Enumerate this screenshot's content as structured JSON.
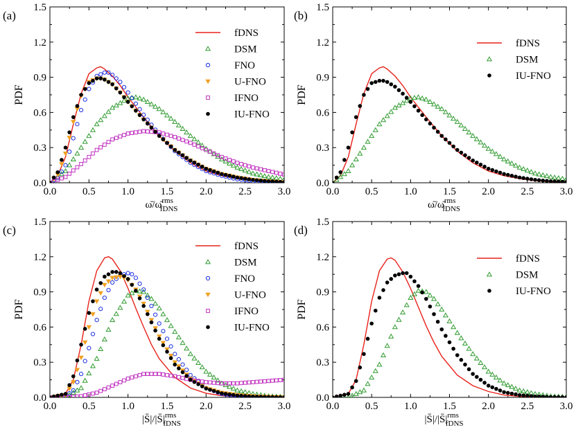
{
  "chart_data": [
    {
      "type": "line",
      "panel_label": "(a)",
      "xlabel_main": "ω̄/ω̄",
      "xlabel_sup": "rms",
      "xlabel_sub": "fDNS",
      "ylabel": "PDF",
      "xlim": [
        0.0,
        3.0
      ],
      "ylim": [
        0.0,
        1.5
      ],
      "xticks": [
        "0.0",
        "0.5",
        "1.0",
        "1.5",
        "2.0",
        "2.5",
        "3.0"
      ],
      "yticks": [
        "0.0",
        "0.3",
        "0.6",
        "0.9",
        "1.2",
        "1.5"
      ],
      "legend_position": "top-right",
      "series": [
        {
          "name": "fDNS",
          "style": "line",
          "color": "#e8211a",
          "x": [
            0.0,
            0.1,
            0.2,
            0.3,
            0.4,
            0.5,
            0.6,
            0.65,
            0.7,
            0.8,
            0.9,
            1.0,
            1.2,
            1.4,
            1.6,
            1.8,
            2.0,
            2.2,
            2.4,
            2.6,
            2.8,
            3.0
          ],
          "y": [
            0.0,
            0.06,
            0.22,
            0.5,
            0.76,
            0.93,
            0.98,
            0.99,
            0.97,
            0.91,
            0.83,
            0.73,
            0.56,
            0.4,
            0.27,
            0.17,
            0.1,
            0.06,
            0.035,
            0.018,
            0.009,
            0.004
          ]
        },
        {
          "name": "DSM",
          "style": "triangle",
          "color": "#2e9a2e",
          "x": [
            0.0,
            0.2,
            0.4,
            0.6,
            0.8,
            1.0,
            1.1,
            1.2,
            1.4,
            1.6,
            1.8,
            2.0,
            2.2,
            2.4,
            2.6,
            2.8,
            3.0
          ],
          "y": [
            0.0,
            0.1,
            0.3,
            0.5,
            0.64,
            0.72,
            0.73,
            0.71,
            0.63,
            0.52,
            0.4,
            0.29,
            0.2,
            0.13,
            0.08,
            0.05,
            0.03
          ]
        },
        {
          "name": "FNO",
          "style": "circle",
          "color": "#1a2ee0",
          "x": [
            0.0,
            0.1,
            0.2,
            0.3,
            0.4,
            0.5,
            0.6,
            0.7,
            0.75,
            0.8,
            0.9,
            1.0,
            1.2,
            1.4,
            1.6,
            1.8,
            2.0,
            2.2,
            2.4,
            2.6,
            2.8,
            3.0
          ],
          "y": [
            0.0,
            0.04,
            0.15,
            0.38,
            0.62,
            0.8,
            0.91,
            0.94,
            0.94,
            0.92,
            0.86,
            0.77,
            0.58,
            0.41,
            0.27,
            0.17,
            0.1,
            0.06,
            0.03,
            0.015,
            0.007,
            0.003
          ]
        },
        {
          "name": "U-FNO",
          "style": "invtriangle",
          "color": "#f0a020",
          "x": [
            0.0,
            0.1,
            0.2,
            0.3,
            0.4,
            0.5,
            0.6,
            0.65,
            0.7,
            0.8,
            0.9,
            1.0,
            1.2,
            1.4,
            1.6,
            1.8,
            2.0,
            2.2,
            2.4,
            2.6,
            2.8,
            3.0
          ],
          "y": [
            0.0,
            0.07,
            0.25,
            0.52,
            0.74,
            0.86,
            0.89,
            0.89,
            0.88,
            0.84,
            0.77,
            0.69,
            0.54,
            0.4,
            0.28,
            0.19,
            0.12,
            0.075,
            0.045,
            0.025,
            0.013,
            0.006
          ]
        },
        {
          "name": "IFNO",
          "style": "square",
          "color": "#c030c0",
          "x": [
            0.0,
            0.2,
            0.4,
            0.6,
            0.8,
            1.0,
            1.2,
            1.4,
            1.6,
            1.8,
            2.0,
            2.2,
            2.4,
            2.6,
            2.8,
            3.0
          ],
          "y": [
            0.0,
            0.05,
            0.16,
            0.28,
            0.37,
            0.42,
            0.44,
            0.43,
            0.39,
            0.34,
            0.28,
            0.22,
            0.17,
            0.13,
            0.1,
            0.07
          ]
        },
        {
          "name": "IU-FNO",
          "style": "dot",
          "color": "#000000",
          "x": [
            0.0,
            0.1,
            0.2,
            0.3,
            0.4,
            0.5,
            0.6,
            0.65,
            0.7,
            0.8,
            0.9,
            1.0,
            1.2,
            1.4,
            1.6,
            1.8,
            2.0,
            2.2,
            2.4,
            2.6,
            2.8,
            3.0
          ],
          "y": [
            0.0,
            0.09,
            0.3,
            0.56,
            0.75,
            0.85,
            0.89,
            0.89,
            0.88,
            0.84,
            0.77,
            0.69,
            0.54,
            0.4,
            0.28,
            0.19,
            0.12,
            0.075,
            0.045,
            0.025,
            0.013,
            0.006
          ]
        }
      ]
    },
    {
      "type": "line",
      "panel_label": "(b)",
      "xlabel_main": "ω̄/ω̄",
      "xlabel_sup": "rms",
      "xlabel_sub": "fDNS",
      "ylabel": "PDF",
      "xlim": [
        0.0,
        3.0
      ],
      "ylim": [
        0.0,
        1.5
      ],
      "xticks": [
        "0.0",
        "0.5",
        "1.0",
        "1.5",
        "2.0",
        "2.5",
        "3.0"
      ],
      "yticks": [
        "0.0",
        "0.3",
        "0.6",
        "0.9",
        "1.2",
        "1.5"
      ],
      "legend_position": "top-right",
      "series": [
        {
          "name": "fDNS",
          "style": "line",
          "color": "#e8211a",
          "x": [
            0.0,
            0.1,
            0.2,
            0.3,
            0.4,
            0.5,
            0.6,
            0.65,
            0.7,
            0.8,
            0.9,
            1.0,
            1.2,
            1.4,
            1.6,
            1.8,
            2.0,
            2.2,
            2.4,
            2.6,
            2.8,
            3.0
          ],
          "y": [
            0.0,
            0.06,
            0.22,
            0.5,
            0.76,
            0.93,
            0.98,
            0.99,
            0.97,
            0.91,
            0.83,
            0.73,
            0.56,
            0.4,
            0.27,
            0.17,
            0.1,
            0.06,
            0.035,
            0.018,
            0.009,
            0.004
          ]
        },
        {
          "name": "DSM",
          "style": "triangle",
          "color": "#2e9a2e",
          "x": [
            0.0,
            0.2,
            0.4,
            0.6,
            0.8,
            1.0,
            1.1,
            1.2,
            1.4,
            1.6,
            1.8,
            2.0,
            2.2,
            2.4,
            2.6,
            2.8,
            3.0
          ],
          "y": [
            0.0,
            0.1,
            0.3,
            0.5,
            0.64,
            0.72,
            0.73,
            0.71,
            0.63,
            0.52,
            0.4,
            0.29,
            0.2,
            0.13,
            0.08,
            0.05,
            0.03
          ]
        },
        {
          "name": "IU-FNO",
          "style": "dot",
          "color": "#000000",
          "x": [
            0.0,
            0.1,
            0.2,
            0.3,
            0.4,
            0.5,
            0.6,
            0.65,
            0.7,
            0.8,
            0.9,
            1.0,
            1.2,
            1.4,
            1.6,
            1.8,
            2.0,
            2.2,
            2.4,
            2.6,
            2.8,
            3.0
          ],
          "y": [
            0.0,
            0.09,
            0.3,
            0.56,
            0.75,
            0.85,
            0.87,
            0.87,
            0.86,
            0.82,
            0.76,
            0.69,
            0.54,
            0.4,
            0.28,
            0.19,
            0.12,
            0.075,
            0.045,
            0.025,
            0.013,
            0.006
          ]
        }
      ]
    },
    {
      "type": "line",
      "panel_label": "(c)",
      "xlabel_main": "|S̄|/|S̄|",
      "xlabel_sup": "rms",
      "xlabel_sub": "fDNS",
      "ylabel": "PDF",
      "xlim": [
        0.0,
        3.0
      ],
      "ylim": [
        0.0,
        1.5
      ],
      "xticks": [
        "0.0",
        "0.5",
        "1.0",
        "1.5",
        "2.0",
        "2.5",
        "3.0"
      ],
      "yticks": [
        "0.0",
        "0.3",
        "0.6",
        "0.9",
        "1.2",
        "1.5"
      ],
      "legend_position": "top-right",
      "series": [
        {
          "name": "fDNS",
          "style": "line",
          "color": "#e8211a",
          "x": [
            0.0,
            0.2,
            0.3,
            0.4,
            0.5,
            0.6,
            0.7,
            0.75,
            0.8,
            0.9,
            1.0,
            1.1,
            1.2,
            1.3,
            1.4,
            1.6,
            1.8,
            2.0,
            2.2,
            2.4,
            2.6,
            2.8,
            3.0
          ],
          "y": [
            0.0,
            0.03,
            0.15,
            0.45,
            0.82,
            1.08,
            1.19,
            1.2,
            1.18,
            1.08,
            0.93,
            0.76,
            0.6,
            0.45,
            0.33,
            0.17,
            0.08,
            0.035,
            0.015,
            0.006,
            0.002,
            0.001,
            0.0
          ]
        },
        {
          "name": "DSM",
          "style": "triangle",
          "color": "#2e9a2e",
          "x": [
            0.0,
            0.2,
            0.4,
            0.6,
            0.8,
            1.0,
            1.1,
            1.2,
            1.3,
            1.4,
            1.6,
            1.8,
            2.0,
            2.2,
            2.4,
            2.6,
            2.8,
            3.0
          ],
          "y": [
            0.0,
            0.0,
            0.08,
            0.33,
            0.66,
            0.87,
            0.91,
            0.9,
            0.84,
            0.76,
            0.56,
            0.37,
            0.22,
            0.12,
            0.06,
            0.03,
            0.01,
            0.005
          ]
        },
        {
          "name": "FNO",
          "style": "circle",
          "color": "#1a2ee0",
          "x": [
            0.0,
            0.2,
            0.3,
            0.4,
            0.5,
            0.6,
            0.7,
            0.8,
            0.9,
            1.0,
            1.05,
            1.1,
            1.2,
            1.3,
            1.4,
            1.6,
            1.8,
            2.0,
            2.2,
            2.4,
            2.6,
            2.8,
            3.0
          ],
          "y": [
            0.0,
            0.01,
            0.06,
            0.2,
            0.42,
            0.66,
            0.85,
            0.98,
            1.04,
            1.06,
            1.05,
            1.02,
            0.92,
            0.78,
            0.63,
            0.37,
            0.19,
            0.08,
            0.03,
            0.01,
            0.004,
            0.001,
            0.0
          ]
        },
        {
          "name": "U-FNO",
          "style": "invtriangle",
          "color": "#f0a020",
          "x": [
            0.0,
            0.2,
            0.3,
            0.4,
            0.5,
            0.6,
            0.7,
            0.8,
            0.9,
            0.95,
            1.0,
            1.1,
            1.2,
            1.3,
            1.4,
            1.6,
            1.8,
            2.0,
            2.2,
            2.4,
            2.6,
            2.8,
            3.0
          ],
          "y": [
            0.0,
            0.02,
            0.13,
            0.34,
            0.6,
            0.82,
            0.96,
            1.02,
            1.03,
            1.02,
            1.0,
            0.92,
            0.8,
            0.66,
            0.52,
            0.3,
            0.16,
            0.08,
            0.04,
            0.02,
            0.01,
            0.005,
            0.002
          ]
        },
        {
          "name": "IFNO",
          "style": "square",
          "color": "#c030c0",
          "x": [
            0.0,
            0.2,
            0.4,
            0.6,
            0.8,
            1.0,
            1.2,
            1.4,
            1.6,
            1.8,
            2.0,
            2.2,
            2.4,
            2.6,
            2.8,
            3.0
          ],
          "y": [
            0.0,
            0.0,
            0.01,
            0.04,
            0.1,
            0.16,
            0.2,
            0.2,
            0.18,
            0.15,
            0.13,
            0.12,
            0.12,
            0.13,
            0.14,
            0.15
          ]
        },
        {
          "name": "IU-FNO",
          "style": "dot",
          "color": "#000000",
          "x": [
            0.0,
            0.2,
            0.3,
            0.4,
            0.5,
            0.6,
            0.7,
            0.8,
            0.85,
            0.9,
            1.0,
            1.1,
            1.2,
            1.3,
            1.4,
            1.6,
            1.8,
            2.0,
            2.2,
            2.4,
            2.6,
            2.8,
            3.0
          ],
          "y": [
            0.0,
            0.03,
            0.18,
            0.45,
            0.72,
            0.92,
            1.03,
            1.07,
            1.07,
            1.06,
            1.01,
            0.91,
            0.78,
            0.64,
            0.5,
            0.28,
            0.15,
            0.075,
            0.035,
            0.016,
            0.007,
            0.003,
            0.001
          ]
        }
      ]
    },
    {
      "type": "line",
      "panel_label": "(d)",
      "xlabel_main": "|S̄|/|S̄|",
      "xlabel_sup": "rms",
      "xlabel_sub": "fDNS",
      "ylabel": "PDF",
      "xlim": [
        0.0,
        3.0
      ],
      "ylim": [
        0.0,
        1.5
      ],
      "xticks": [
        "0.0",
        "0.5",
        "1.0",
        "1.5",
        "2.0",
        "2.5",
        "3.0"
      ],
      "yticks": [
        "0.0",
        "0.3",
        "0.6",
        "0.9",
        "1.2",
        "1.5"
      ],
      "legend_position": "top-right",
      "series": [
        {
          "name": "fDNS",
          "style": "line",
          "color": "#e8211a",
          "x": [
            0.0,
            0.2,
            0.3,
            0.4,
            0.5,
            0.6,
            0.7,
            0.75,
            0.8,
            0.9,
            1.0,
            1.1,
            1.2,
            1.3,
            1.4,
            1.6,
            1.8,
            2.0,
            2.2,
            2.4,
            2.6,
            2.8,
            3.0
          ],
          "y": [
            0.0,
            0.03,
            0.15,
            0.45,
            0.82,
            1.08,
            1.18,
            1.19,
            1.17,
            1.07,
            0.93,
            0.77,
            0.61,
            0.47,
            0.35,
            0.19,
            0.1,
            0.05,
            0.02,
            0.008,
            0.003,
            0.001,
            0.0
          ]
        },
        {
          "name": "DSM",
          "style": "triangle",
          "color": "#2e9a2e",
          "x": [
            0.0,
            0.2,
            0.4,
            0.6,
            0.8,
            1.0,
            1.1,
            1.2,
            1.3,
            1.4,
            1.6,
            1.8,
            2.0,
            2.2,
            2.4,
            2.6,
            2.8,
            3.0
          ],
          "y": [
            0.0,
            0.0,
            0.06,
            0.28,
            0.6,
            0.85,
            0.91,
            0.9,
            0.84,
            0.75,
            0.55,
            0.37,
            0.22,
            0.12,
            0.06,
            0.03,
            0.01,
            0.005
          ]
        },
        {
          "name": "IU-FNO",
          "style": "dot",
          "color": "#000000",
          "x": [
            0.0,
            0.2,
            0.3,
            0.4,
            0.5,
            0.6,
            0.7,
            0.8,
            0.9,
            0.95,
            1.0,
            1.1,
            1.2,
            1.3,
            1.4,
            1.6,
            1.8,
            2.0,
            2.2,
            2.4,
            2.6,
            2.8,
            3.0
          ],
          "y": [
            0.0,
            0.03,
            0.14,
            0.37,
            0.63,
            0.85,
            0.98,
            1.04,
            1.06,
            1.06,
            1.03,
            0.95,
            0.84,
            0.71,
            0.58,
            0.36,
            0.2,
            0.1,
            0.045,
            0.02,
            0.008,
            0.003,
            0.001
          ]
        }
      ]
    }
  ]
}
